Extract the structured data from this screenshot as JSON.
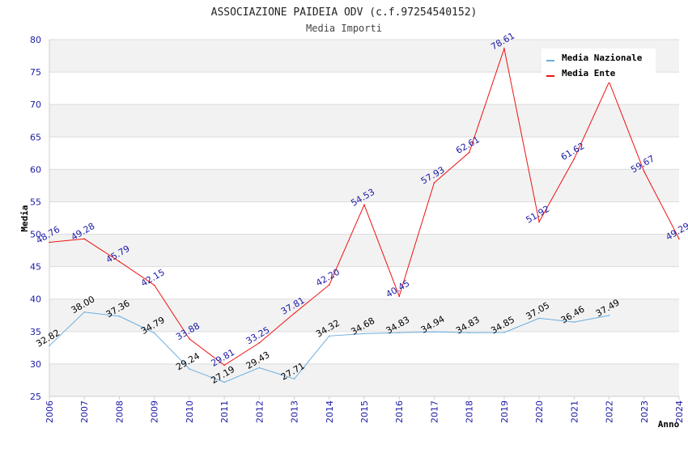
{
  "chart_data": {
    "type": "line",
    "title": "ASSOCIAZIONE PAIDEIA ODV (c.f.97254540152)",
    "subtitle": "Media Importi",
    "ylabel": "Media",
    "xlabel": "Anno",
    "ylim": [
      25,
      80
    ],
    "yticks": [
      25,
      30,
      35,
      40,
      45,
      50,
      55,
      60,
      65,
      70,
      75,
      80
    ],
    "x": [
      2006,
      2007,
      2008,
      2009,
      2010,
      2011,
      2012,
      2013,
      2014,
      2015,
      2016,
      2017,
      2018,
      2019,
      2020,
      2021,
      2022,
      2023,
      2024
    ],
    "legend_position": "top-right",
    "series": [
      {
        "name": "Media Nazionale",
        "color": "#6aaee0",
        "x": [
          2006,
          2007,
          2008,
          2009,
          2010,
          2011,
          2012,
          2013,
          2014,
          2015,
          2016,
          2017,
          2018,
          2019,
          2020,
          2021,
          2022
        ],
        "values": [
          32.82,
          38.0,
          37.36,
          34.79,
          29.24,
          27.19,
          29.43,
          27.71,
          34.32,
          34.68,
          34.83,
          34.94,
          34.83,
          34.85,
          37.05,
          36.46,
          37.49
        ],
        "labels": [
          "32.82",
          "38.00",
          "37.36",
          "34.79",
          "29.24",
          "27.19",
          "29.43",
          "27.71",
          "34.32",
          "34.68",
          "34.83",
          "34.94",
          "34.83",
          "34.85",
          "37.05",
          "36.46",
          "37.49"
        ]
      },
      {
        "name": "Media Ente",
        "color": "#ee1111",
        "x": [
          2006,
          2007,
          2008,
          2009,
          2010,
          2011,
          2012,
          2013,
          2014,
          2015,
          2016,
          2017,
          2018,
          2019,
          2020,
          2021,
          2022,
          2023,
          2024
        ],
        "values": [
          48.76,
          49.28,
          45.79,
          42.15,
          33.88,
          29.81,
          33.25,
          37.81,
          42.2,
          54.53,
          40.45,
          57.93,
          62.61,
          78.61,
          51.92,
          61.62,
          73.48,
          59.67,
          49.29
        ],
        "labels": [
          "48.76",
          "49.28",
          "45.79",
          "42.15",
          "33.88",
          "29.81",
          "33.25",
          "37.81",
          "42.20",
          "54.53",
          "40.45",
          "57.93",
          "62.61",
          "78.61",
          "51.92",
          "61.62",
          "",
          "59.67",
          "49.29"
        ]
      }
    ]
  }
}
